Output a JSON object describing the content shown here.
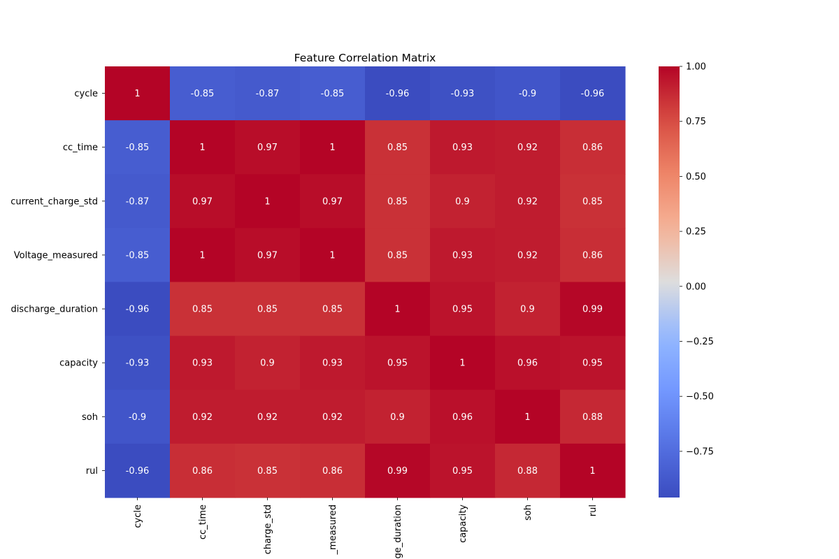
{
  "chart_data": {
    "type": "heatmap",
    "title": "Feature Correlation Matrix",
    "xlabel": "",
    "ylabel": "",
    "colormap": "coolwarm",
    "row_labels": [
      "cycle",
      "cc_time",
      "current_charge_std",
      "Voltage_measured",
      "discharge_duration",
      "capacity",
      "soh",
      "rul"
    ],
    "col_labels": [
      "cycle",
      "cc_time",
      "charge_std",
      "_measured",
      "ge_duration",
      "capacity",
      "soh",
      "rul"
    ],
    "values": [
      [
        1,
        -0.85,
        -0.87,
        -0.85,
        -0.96,
        -0.93,
        -0.9,
        -0.96
      ],
      [
        -0.85,
        1,
        0.97,
        1,
        0.85,
        0.93,
        0.92,
        0.86
      ],
      [
        -0.87,
        0.97,
        1,
        0.97,
        0.85,
        0.9,
        0.92,
        0.85
      ],
      [
        -0.85,
        1,
        0.97,
        1,
        0.85,
        0.93,
        0.92,
        0.86
      ],
      [
        -0.96,
        0.85,
        0.85,
        0.85,
        1,
        0.95,
        0.9,
        0.99
      ],
      [
        -0.93,
        0.93,
        0.9,
        0.93,
        0.95,
        1,
        0.96,
        0.95
      ],
      [
        -0.9,
        0.92,
        0.92,
        0.92,
        0.9,
        0.96,
        1,
        0.88
      ],
      [
        -0.96,
        0.86,
        0.85,
        0.86,
        0.99,
        0.95,
        0.88,
        1
      ]
    ],
    "annotations": [
      [
        "1",
        "-0.85",
        "-0.87",
        "-0.85",
        "-0.96",
        "-0.93",
        "-0.9",
        "-0.96"
      ],
      [
        "-0.85",
        "1",
        "0.97",
        "1",
        "0.85",
        "0.93",
        "0.92",
        "0.86"
      ],
      [
        "-0.87",
        "0.97",
        "1",
        "0.97",
        "0.85",
        "0.9",
        "0.92",
        "0.85"
      ],
      [
        "-0.85",
        "1",
        "0.97",
        "1",
        "0.85",
        "0.93",
        "0.92",
        "0.86"
      ],
      [
        "-0.96",
        "0.85",
        "0.85",
        "0.85",
        "1",
        "0.95",
        "0.9",
        "0.99"
      ],
      [
        "-0.93",
        "0.93",
        "0.9",
        "0.93",
        "0.95",
        "1",
        "0.96",
        "0.95"
      ],
      [
        "-0.9",
        "0.92",
        "0.92",
        "0.92",
        "0.9",
        "0.96",
        "1",
        "0.88"
      ],
      [
        "-0.96",
        "0.86",
        "0.85",
        "0.86",
        "0.99",
        "0.95",
        "0.88",
        "1"
      ]
    ],
    "colorbar": {
      "range": [
        -0.96,
        1.0
      ],
      "ticks": [
        1.0,
        0.75,
        0.5,
        0.25,
        0.0,
        -0.25,
        -0.5,
        -0.75
      ],
      "tick_labels": [
        "1.00",
        "0.75",
        "0.50",
        "0.25",
        "0.00",
        "−0.25",
        "−0.50",
        "−0.75"
      ]
    },
    "legend": "colorbar-right",
    "grid": false
  }
}
